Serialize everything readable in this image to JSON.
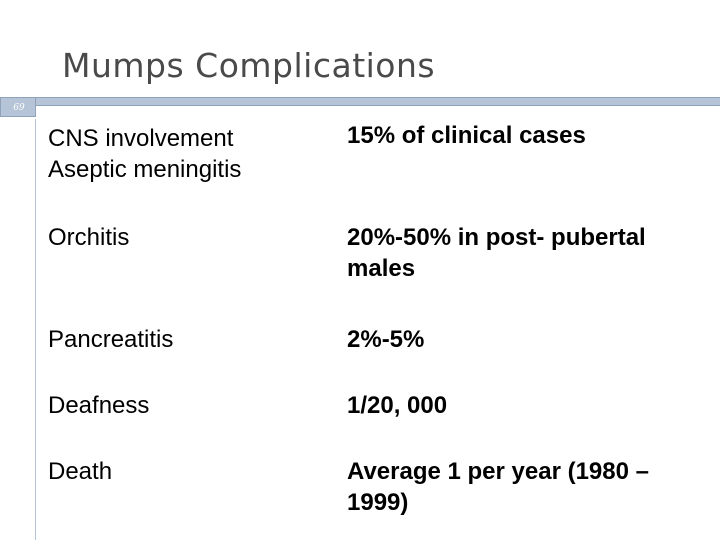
{
  "slide": {
    "title": "Mumps Complications",
    "number": "69"
  },
  "table": {
    "rows": [
      {
        "condition": "CNS involvement\nAseptic meningitis",
        "value": "15% of clinical cases"
      },
      {
        "condition": "Orchitis",
        "value": "20%-50% in post- pubertal\nmales"
      },
      {
        "condition": "Pancreatitis",
        "value": "2%-5%"
      },
      {
        "condition": "Deafness",
        "value": "1/20, 000"
      },
      {
        "condition": "Death",
        "value": "Average 1 per year (1980 –\n1999)"
      }
    ]
  }
}
